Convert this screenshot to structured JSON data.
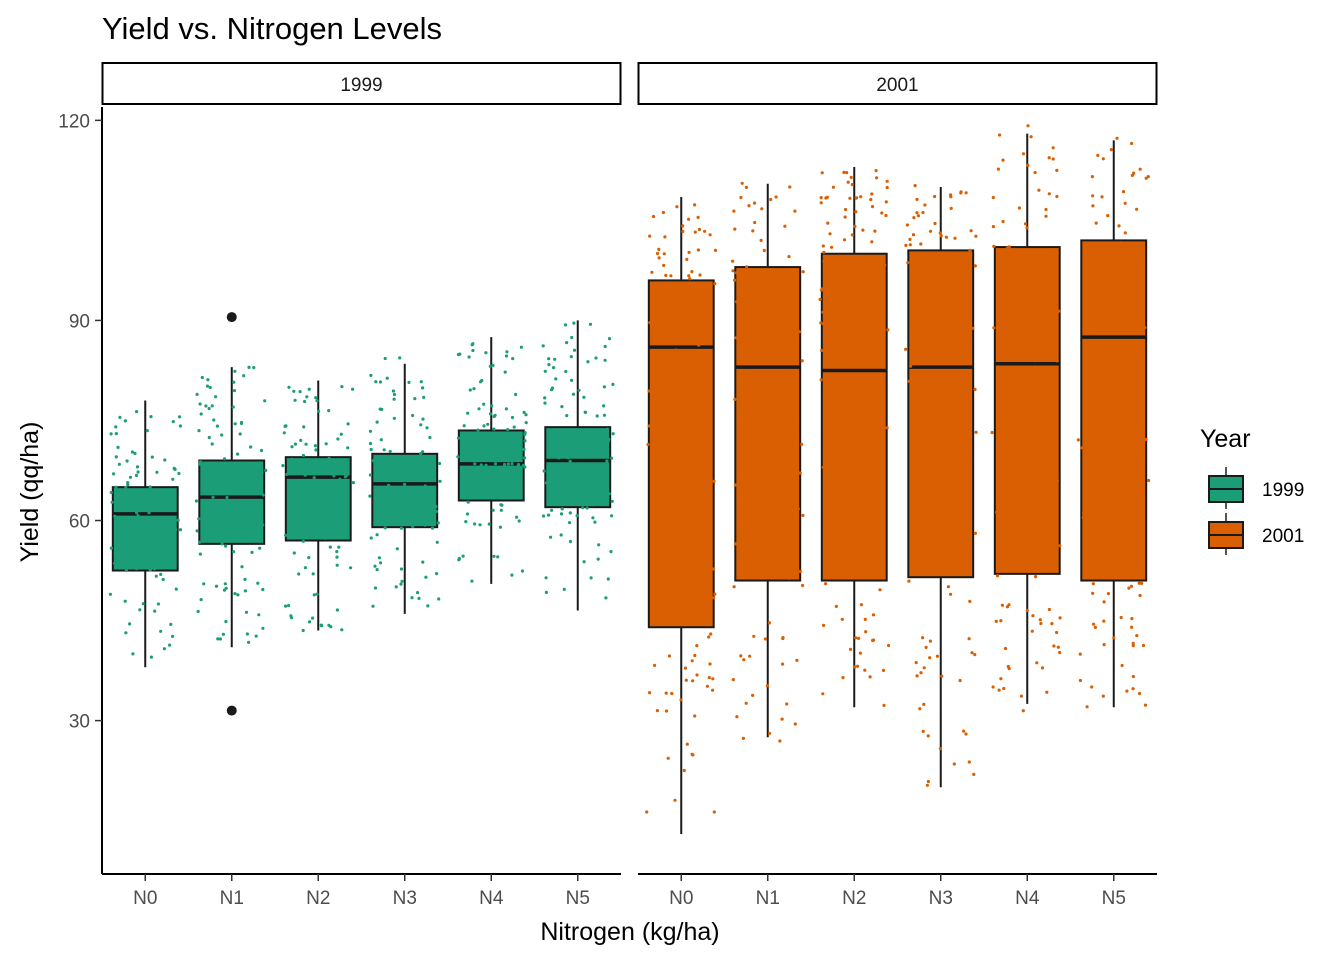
{
  "chart_data": {
    "type": "box",
    "title": "Yield vs. Nitrogen Levels",
    "xlabel": "Nitrogen (kg/ha)",
    "ylabel": "Yield (qq/ha)",
    "ylim": [
      7,
      122
    ],
    "yticks": [
      30,
      60,
      90,
      120
    ],
    "categories": [
      "N0",
      "N1",
      "N2",
      "N3",
      "N4",
      "N5"
    ],
    "grid": false,
    "legend": {
      "title": "Year",
      "position": "right",
      "entries": [
        "1999",
        "2001"
      ]
    },
    "colors": {
      "1999": "#1b9e77",
      "2001": "#d95f02"
    },
    "panels": [
      {
        "label": "1999",
        "color": "#1b9e77",
        "boxes": [
          {
            "category": "N0",
            "whisker_low": 38,
            "q1": 52.5,
            "median": 61,
            "q3": 65,
            "whisker_high": 78,
            "outliers": []
          },
          {
            "category": "N1",
            "whisker_low": 41,
            "q1": 56.5,
            "median": 63.5,
            "q3": 69,
            "whisker_high": 83,
            "outliers": [
              90.5,
              31.5
            ]
          },
          {
            "category": "N2",
            "whisker_low": 43.5,
            "q1": 57,
            "median": 66.5,
            "q3": 69.5,
            "whisker_high": 81,
            "outliers": []
          },
          {
            "category": "N3",
            "whisker_low": 46,
            "q1": 59,
            "median": 65.5,
            "q3": 70,
            "whisker_high": 83.5,
            "outliers": []
          },
          {
            "category": "N4",
            "whisker_low": 50.5,
            "q1": 63,
            "median": 68.5,
            "q3": 73.5,
            "whisker_high": 87.5,
            "outliers": []
          },
          {
            "category": "N5",
            "whisker_low": 46.5,
            "q1": 62,
            "median": 69,
            "q3": 74,
            "whisker_high": 90,
            "outliers": []
          }
        ]
      },
      {
        "label": "2001",
        "color": "#d95f02",
        "boxes": [
          {
            "category": "N0",
            "whisker_low": 13,
            "q1": 44,
            "median": 86,
            "q3": 96,
            "whisker_high": 108.5,
            "outliers": []
          },
          {
            "category": "N1",
            "whisker_low": 27.5,
            "q1": 51,
            "median": 83,
            "q3": 98,
            "whisker_high": 110.5,
            "outliers": []
          },
          {
            "category": "N2",
            "whisker_low": 32,
            "q1": 51,
            "median": 82.5,
            "q3": 100,
            "whisker_high": 113,
            "outliers": []
          },
          {
            "category": "N3",
            "whisker_low": 20,
            "q1": 51.5,
            "median": 83,
            "q3": 100.5,
            "whisker_high": 110,
            "outliers": []
          },
          {
            "category": "N4",
            "whisker_low": 32.5,
            "q1": 52,
            "median": 83.5,
            "q3": 101,
            "whisker_high": 118,
            "outliers": []
          },
          {
            "category": "N5",
            "whisker_low": 32,
            "q1": 51,
            "median": 87.5,
            "q3": 102,
            "whisker_high": 117,
            "outliers": []
          }
        ]
      }
    ],
    "jitter_points_per_box": 110
  }
}
